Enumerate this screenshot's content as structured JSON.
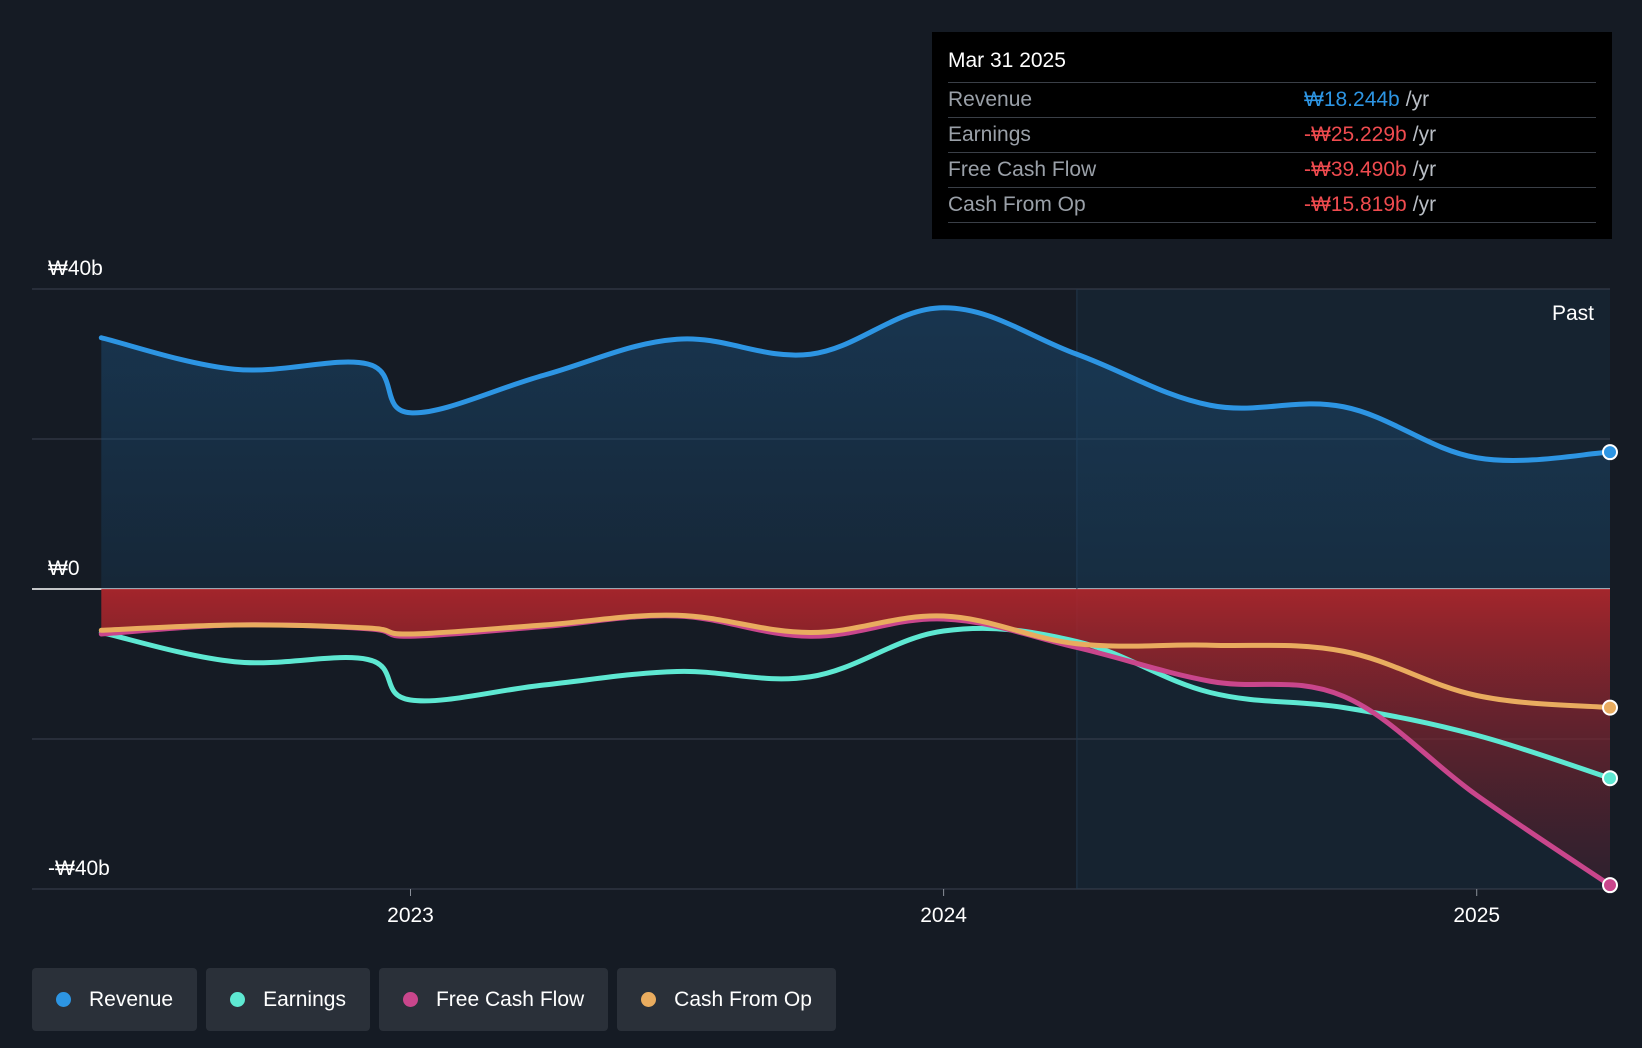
{
  "tooltip": {
    "date": "Mar 31 2025",
    "rows": [
      {
        "label": "Revenue",
        "value": "₩18.244b",
        "unit": "/yr",
        "color": "#2d95e3"
      },
      {
        "label": "Earnings",
        "value": "-₩25.229b",
        "unit": "/yr",
        "color": "#ef4b4f"
      },
      {
        "label": "Free Cash Flow",
        "value": "-₩39.490b",
        "unit": "/yr",
        "color": "#ef4b4f"
      },
      {
        "label": "Cash From Op",
        "value": "-₩15.819b",
        "unit": "/yr",
        "color": "#ef4b4f"
      }
    ]
  },
  "past_label": "Past",
  "legend": [
    {
      "label": "Revenue",
      "color": "#2d95e3"
    },
    {
      "label": "Earnings",
      "color": "#5ee8d2"
    },
    {
      "label": "Free Cash Flow",
      "color": "#c9468c"
    },
    {
      "label": "Cash From Op",
      "color": "#e9ac5f"
    }
  ],
  "chart_data": {
    "type": "line",
    "ylim": [
      -40,
      40
    ],
    "y_tick_labels": [
      {
        "value": 40,
        "label": "₩40b"
      },
      {
        "value": 0,
        "label": "₩0"
      },
      {
        "value": -40,
        "label": "-₩40b"
      }
    ],
    "x_tick_labels": [
      {
        "value": 2023.0,
        "label": "2023"
      },
      {
        "value": 2024.0,
        "label": "2024"
      },
      {
        "value": 2025.0,
        "label": "2025"
      }
    ],
    "x_range": [
      2022.29,
      2025.25
    ],
    "past_start": 2024.25,
    "series": [
      {
        "name": "Revenue",
        "color": "#2d95e3",
        "x": [
          2022.42,
          2022.67,
          2022.92,
          2023.0,
          2023.25,
          2023.5,
          2023.75,
          2024.0,
          2024.25,
          2024.5,
          2024.75,
          2025.0,
          2025.25
        ],
        "y": [
          33.5,
          29.3,
          30.0,
          23.5,
          28.5,
          33.3,
          31.3,
          37.5,
          31.3,
          24.5,
          24.3,
          17.5,
          18.244
        ]
      },
      {
        "name": "Earnings",
        "color": "#5ee8d2",
        "x": [
          2022.42,
          2022.67,
          2022.92,
          2023.0,
          2023.25,
          2023.5,
          2023.75,
          2024.0,
          2024.25,
          2024.5,
          2024.75,
          2025.0,
          2025.25
        ],
        "y": [
          -5.8,
          -9.7,
          -9.4,
          -14.8,
          -12.8,
          -11.0,
          -11.7,
          -5.6,
          -7.0,
          -13.8,
          -15.8,
          -19.5,
          -25.229
        ]
      },
      {
        "name": "Free Cash Flow",
        "color": "#c9468c",
        "x": [
          2022.42,
          2022.67,
          2022.92,
          2023.0,
          2023.25,
          2023.5,
          2023.75,
          2024.0,
          2024.25,
          2024.5,
          2024.75,
          2025.0,
          2025.25
        ],
        "y": [
          -6.0,
          -4.8,
          -5.3,
          -6.3,
          -5.0,
          -3.6,
          -6.3,
          -4.0,
          -7.8,
          -12.3,
          -14.3,
          -27.5,
          -39.49
        ]
      },
      {
        "name": "Cash From Op",
        "color": "#e9ac5f",
        "x": [
          2022.42,
          2022.67,
          2022.92,
          2023.0,
          2023.25,
          2023.5,
          2023.75,
          2024.0,
          2024.25,
          2024.5,
          2024.75,
          2025.0,
          2025.25
        ],
        "y": [
          -5.5,
          -4.8,
          -5.2,
          -6.0,
          -4.8,
          -3.5,
          -5.8,
          -3.6,
          -7.3,
          -7.5,
          -8.3,
          -14.2,
          -15.819
        ]
      }
    ]
  }
}
